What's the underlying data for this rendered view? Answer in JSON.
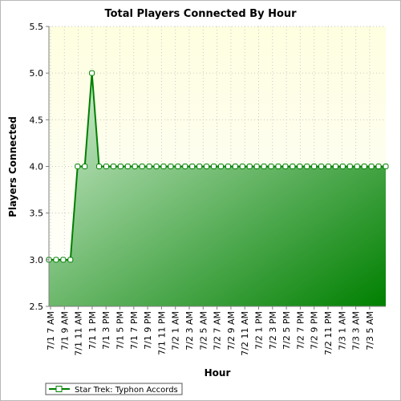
{
  "chart_data": {
    "type": "area",
    "title": "Total Players Connected By Hour",
    "xlabel": "Hour",
    "ylabel": "Players Connected",
    "ylim": [
      2.5,
      5.5
    ],
    "yticks": [
      "2.5",
      "3.0",
      "3.5",
      "4.0",
      "4.5",
      "5.0",
      "5.5"
    ],
    "grid": true,
    "legend_position": "bottom-left",
    "x_tick_labels": [
      "7/1 7 AM",
      "7/1 9 AM",
      "7/1 11 AM",
      "7/1 1 PM",
      "7/1 3 PM",
      "7/1 5 PM",
      "7/1 7 PM",
      "7/1 9 PM",
      "7/1 11 PM",
      "7/2 1 AM",
      "7/2 3 AM",
      "7/2 5 AM",
      "7/2 7 AM",
      "7/2 9 AM",
      "7/2 11 AM",
      "7/2 1 PM",
      "7/2 3 PM",
      "7/2 5 PM",
      "7/2 7 PM",
      "7/2 9 PM",
      "7/2 11 PM",
      "7/3 1 AM",
      "7/3 3 AM",
      "7/3 5 AM"
    ],
    "series": [
      {
        "name": "Star Trek: Typhon Accords",
        "color": "#008000",
        "values": [
          3,
          3,
          3,
          3,
          4,
          4,
          5,
          4,
          4,
          4,
          4,
          4,
          4,
          4,
          4,
          4,
          4,
          4,
          4,
          4,
          4,
          4,
          4,
          4,
          4,
          4,
          4,
          4,
          4,
          4,
          4,
          4,
          4,
          4,
          4,
          4,
          4,
          4,
          4,
          4,
          4,
          4,
          4,
          4,
          4,
          4,
          4,
          4
        ]
      }
    ]
  },
  "colors": {
    "plot_background_top": "#fefee0",
    "plot_background_bottom": "#ffffff",
    "series_line": "#008000",
    "area_light": "#cfeccf",
    "area_dark": "#008000",
    "gridline": "#c8c8c8"
  }
}
